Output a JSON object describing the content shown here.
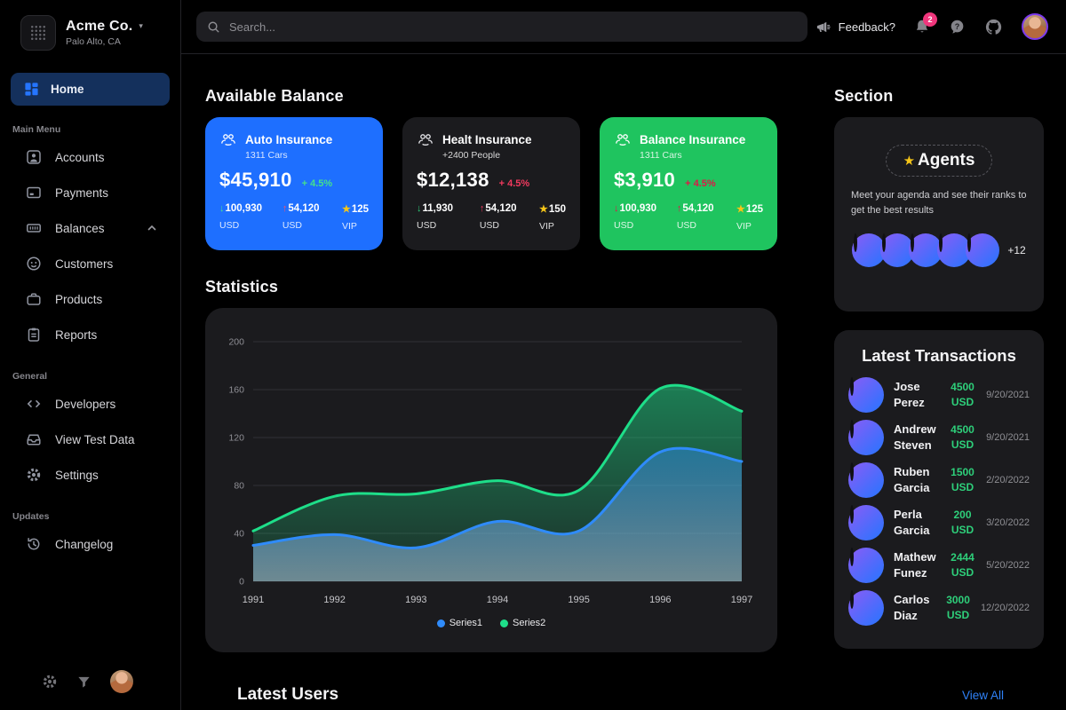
{
  "colors": {
    "accent_blue": "#2575ff",
    "active_item_bg": "#14305c",
    "panel_bg": "#1b1b1e",
    "badge_pink": "#f0367c",
    "link_blue": "#2f81f7",
    "star_gold": "#f5c518",
    "positive_green": "#2ecf7a",
    "negative_red": "#f23a5e"
  },
  "brand": {
    "name": "Acme Co.",
    "location": "Palo Alto, CA",
    "caret": "▾",
    "logo_icon": "dot-grid-logo"
  },
  "sidebar": {
    "home": {
      "label": "Home",
      "icon": "dashboard-icon"
    },
    "sections": [
      {
        "label": "Main Menu",
        "items": [
          {
            "label": "Accounts",
            "icon": "person-icon"
          },
          {
            "label": "Payments",
            "icon": "card-icon"
          },
          {
            "label": "Balances",
            "icon": "banknote-icon",
            "chevron": "up"
          },
          {
            "label": "Customers",
            "icon": "face-icon"
          },
          {
            "label": "Products",
            "icon": "briefcase-icon"
          },
          {
            "label": "Reports",
            "icon": "clipboard-icon"
          }
        ]
      },
      {
        "label": "General",
        "items": [
          {
            "label": "Developers",
            "icon": "code-icon"
          },
          {
            "label": "View Test Data",
            "icon": "tray-icon"
          },
          {
            "label": "Settings",
            "icon": "gear-icon"
          }
        ]
      },
      {
        "label": "Updates",
        "items": [
          {
            "label": "Changelog",
            "icon": "history-icon"
          }
        ]
      }
    ]
  },
  "topbar": {
    "search_placeholder": "Search...",
    "feedback_label": "Feedback?",
    "notification_count": "2"
  },
  "balance": {
    "title": "Available Balance",
    "cards": [
      {
        "bg": "#1e6fff",
        "icon": "people-group-icon",
        "title": "Auto Insurance",
        "subtitle": "1311 Cars",
        "amount": "$45,910",
        "change": "+ 4.5%",
        "change_color": "#45e08c",
        "stats": [
          {
            "glyph": "↓",
            "glyph_color": "#49e18d",
            "value": "100,930",
            "unit": "USD"
          },
          {
            "glyph": "↑",
            "glyph_color": "#ff4d67",
            "value": "54,120",
            "unit": "USD"
          },
          {
            "glyph": "★",
            "glyph_color": "#f5c518",
            "value": "125",
            "unit": "VIP"
          }
        ]
      },
      {
        "bg": "#1b1b1e",
        "icon": "people-group-icon",
        "title": "Healt Insurance",
        "subtitle": "+2400 People",
        "amount": "$12,138",
        "change": "+ 4.5%",
        "change_color": "#f23a5e",
        "stats": [
          {
            "glyph": "↓",
            "glyph_color": "#2ecf7a",
            "value": "11,930",
            "unit": "USD"
          },
          {
            "glyph": "↑",
            "glyph_color": "#f23a5e",
            "value": "54,120",
            "unit": "USD"
          },
          {
            "glyph": "★",
            "glyph_color": "#f5c518",
            "value": "150",
            "unit": "VIP"
          }
        ]
      },
      {
        "bg": "#1fc45f",
        "icon": "people-group-icon",
        "title": "Balance Insurance",
        "subtitle": "1311 Cars",
        "amount": "$3,910",
        "change": "+ 4.5%",
        "change_color": "#e01647",
        "stats": [
          {
            "glyph": "↓",
            "glyph_color": "#e01647",
            "value": "100,930",
            "unit": "USD"
          },
          {
            "glyph": "↑",
            "glyph_color": "#e01647",
            "value": "54,120",
            "unit": "USD"
          },
          {
            "glyph": "★",
            "glyph_color": "#f5c518",
            "value": "125",
            "unit": "VIP"
          }
        ]
      }
    ]
  },
  "chart_data": {
    "type": "area",
    "title": "Statistics",
    "x": [
      "1991",
      "1992",
      "1993",
      "1994",
      "1995",
      "1996",
      "1997"
    ],
    "series": [
      {
        "name": "Series1",
        "color": "#2f8bfa",
        "fill_top": "rgba(47,139,250,0.45)",
        "fill_bottom": "rgba(165,198,216,0.60)",
        "values": [
          30,
          39,
          28,
          50,
          42,
          108,
          100
        ]
      },
      {
        "name": "Series2",
        "color": "#1ede89",
        "fill_top": "rgba(30,222,137,0.50)",
        "fill_bottom": "rgba(30,222,137,0.10)",
        "values": [
          42,
          71,
          73,
          84,
          76,
          161,
          142
        ]
      }
    ],
    "ylim": [
      0,
      200
    ],
    "yticks": [
      0,
      40,
      80,
      120,
      160,
      200
    ],
    "grid": true,
    "legend_position": "bottom"
  },
  "section_panel": {
    "title": "Section",
    "agents": {
      "star": "★",
      "badge": "Agents",
      "description": "Meet your agenda and see their ranks to get the best results",
      "more_label": "+12",
      "avatar_count": 5
    }
  },
  "transactions": {
    "title": "Latest Transactions",
    "items": [
      {
        "first": "Jose",
        "last": "Perez",
        "amount": "4500",
        "currency": "USD",
        "date": "9/20/2021"
      },
      {
        "first": "Andrew",
        "last": "Steven",
        "amount": "4500",
        "currency": "USD",
        "date": "9/20/2021"
      },
      {
        "first": "Ruben",
        "last": "Garcia",
        "amount": "1500",
        "currency": "USD",
        "date": "2/20/2022"
      },
      {
        "first": "Perla",
        "last": "Garcia",
        "amount": "200",
        "currency": "USD",
        "date": "3/20/2022"
      },
      {
        "first": "Mathew",
        "last": "Funez",
        "amount": "2444",
        "currency": "USD",
        "date": "5/20/2022"
      },
      {
        "first": "Carlos",
        "last": "Diaz",
        "amount": "3000",
        "currency": "USD",
        "date": "12/20/2022"
      }
    ]
  },
  "latest_users": {
    "title": "Latest Users",
    "view_all_label": "View All"
  }
}
